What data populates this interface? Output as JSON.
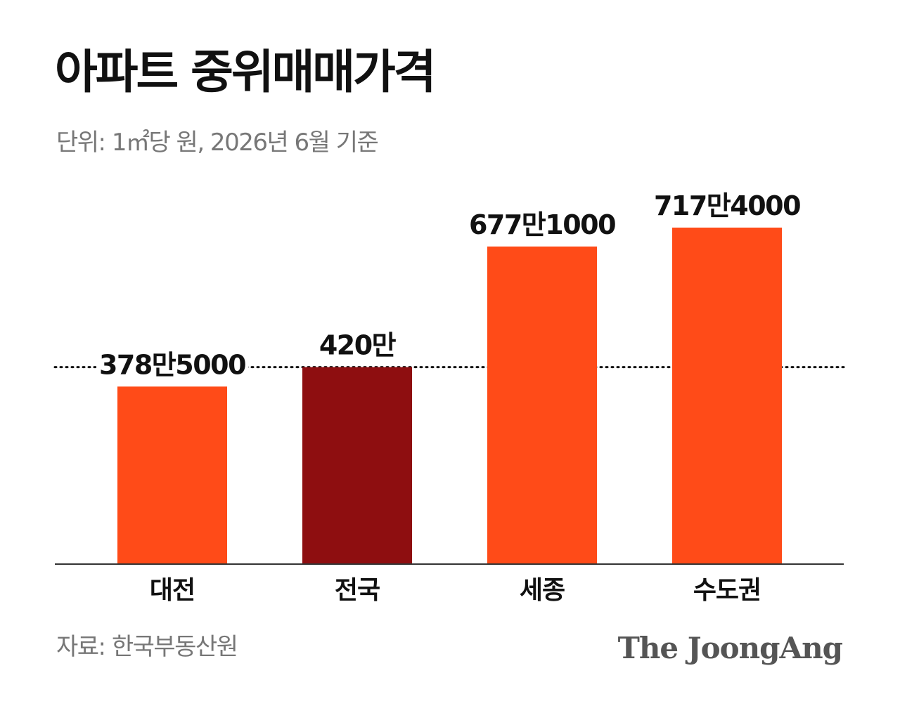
{
  "header": {
    "title": "아파트 중위매매가격",
    "subtitle": "단위: 1㎡당 원, 2026년 6월 기준"
  },
  "footer": {
    "source": "자료: 한국부동산원",
    "logo_text": "The JoongAng"
  },
  "colors": {
    "bar": "#ff4b18",
    "highlight_bar": "#8e0e10",
    "text": "#111111",
    "muted": "#777777",
    "axis": "#333333"
  },
  "chart_data": {
    "type": "bar",
    "categories": [
      "대전",
      "전국",
      "세종",
      "수도권"
    ],
    "values": [
      3785000,
      4200000,
      6771000,
      7174000
    ],
    "data_labels": [
      "378만5000",
      "420만",
      "677만1000",
      "717만4000"
    ],
    "highlight_index": 1,
    "reference_line": {
      "value": 4200000,
      "style": "dotted"
    },
    "ylim": [
      0,
      8000000
    ],
    "grid": false,
    "legend": "none"
  }
}
